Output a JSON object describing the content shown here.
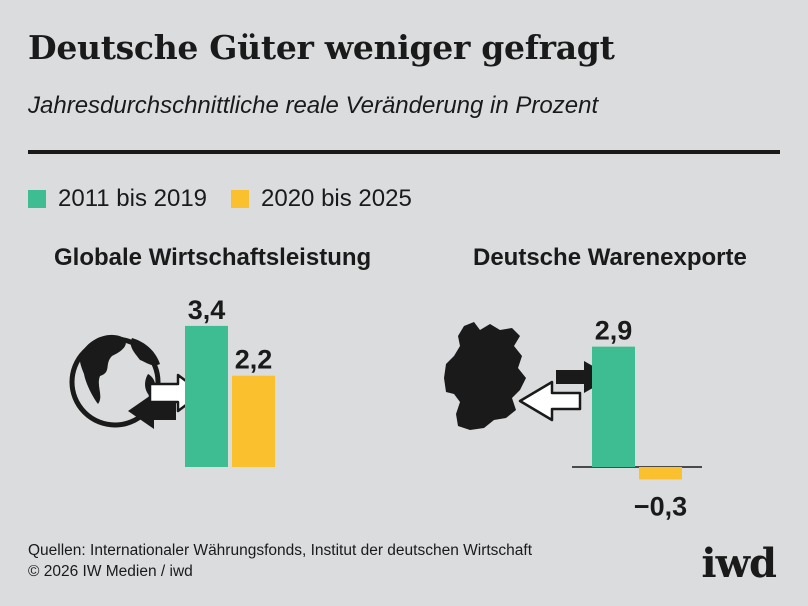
{
  "title": "Deutsche Güter weniger gefragt",
  "subtitle": "Jahresdurchschnittliche reale Veränderung in Prozent",
  "colors": {
    "series1": "#3dbd91",
    "series2": "#fbc02d",
    "text": "#1a1a1a",
    "background": "#dadcde"
  },
  "chart_data": [
    {
      "type": "bar",
      "title": "Globale Wirtschaftsleistung",
      "series": [
        {
          "name": "2011 bis 2019",
          "values": [
            3.4
          ],
          "labels": [
            "3,4"
          ]
        },
        {
          "name": "2020 bis 2025",
          "values": [
            2.2
          ],
          "labels": [
            "2,2"
          ]
        }
      ],
      "ylim": [
        0,
        3.5
      ]
    },
    {
      "type": "bar",
      "title": "Deutsche Warenexporte",
      "series": [
        {
          "name": "2011 bis 2019",
          "values": [
            2.9
          ],
          "labels": [
            "2,9"
          ]
        },
        {
          "name": "2020 bis 2025",
          "values": [
            -0.3
          ],
          "labels": [
            "−0,3"
          ]
        }
      ],
      "ylim": [
        -0.5,
        3.5
      ]
    }
  ],
  "icons": [
    "globe-exchange-icon",
    "germany-map-icon"
  ],
  "footer": {
    "sources": "Quellen: Internationaler Währungsfonds, Institut der deutschen Wirtschaft",
    "copyright": "© 2026 IW Medien / iwd"
  },
  "logo": "iwd"
}
